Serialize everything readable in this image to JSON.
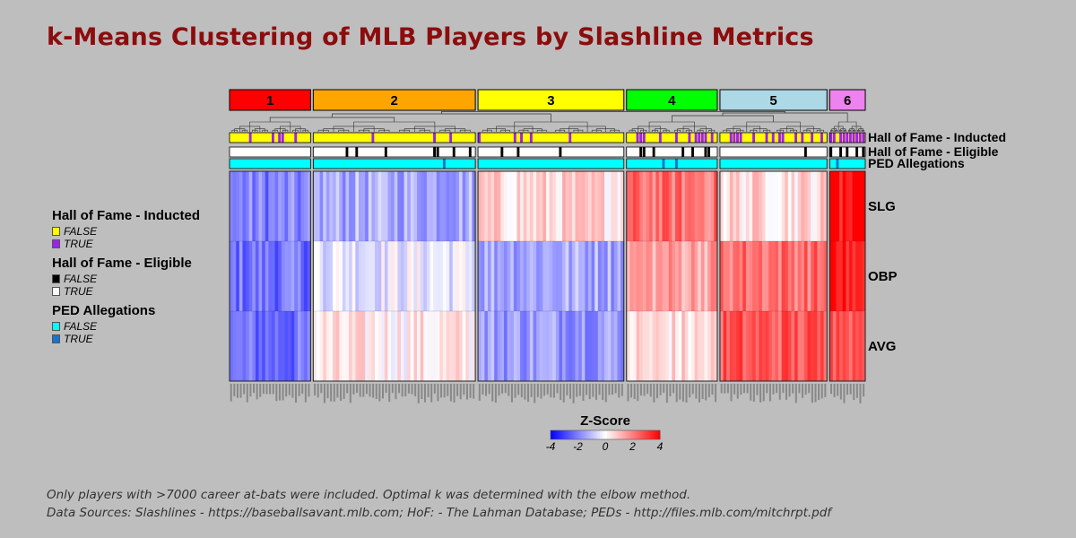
{
  "title": "k-Means Clustering of MLB Players by Slashline Metrics",
  "chart_data": {
    "type": "heatmap",
    "rows": [
      "SLG",
      "OBP",
      "AVG"
    ],
    "clusters": [
      {
        "label": "1",
        "color": "#ff0000",
        "n_players": 25,
        "mean_z": {
          "SLG": -2.0,
          "OBP": -2.2,
          "AVG": -2.3
        },
        "hof_inducted_share": 0.25,
        "hof_ineligible_share": 0.05,
        "ped_true_share": 0.0
      },
      {
        "label": "2",
        "color": "#ffa500",
        "n_players": 50,
        "mean_z": {
          "SLG": -1.3,
          "OBP": -0.3,
          "AVG": 0.3
        },
        "hof_inducted_share": 0.1,
        "hof_ineligible_share": 0.18,
        "ped_true_share": 0.02
      },
      {
        "label": "3",
        "color": "#ffff00",
        "n_players": 45,
        "mean_z": {
          "SLG": 0.6,
          "OBP": -1.3,
          "AVG": -1.5
        },
        "hof_inducted_share": 0.15,
        "hof_ineligible_share": 0.12,
        "ped_true_share": 0.02
      },
      {
        "label": "4",
        "color": "#00ff00",
        "n_players": 28,
        "mean_z": {
          "SLG": 2.2,
          "OBP": 1.5,
          "AVG": 0.5
        },
        "hof_inducted_share": 0.45,
        "hof_ineligible_share": 0.15,
        "ped_true_share": 0.1
      },
      {
        "label": "5",
        "color": "#add8e6",
        "n_players": 33,
        "mean_z": {
          "SLG": 0.6,
          "OBP": 2.3,
          "AVG": 2.6
        },
        "hof_inducted_share": 0.35,
        "hof_ineligible_share": 0.08,
        "ped_true_share": 0.0
      },
      {
        "label": "6",
        "color": "#ee82ee",
        "n_players": 11,
        "mean_z": {
          "SLG": 3.7,
          "OBP": 3.6,
          "AVG": 2.8
        },
        "hof_inducted_share": 0.55,
        "hof_ineligible_share": 0.3,
        "ped_true_share": 0.1
      }
    ],
    "annotation_tracks": [
      {
        "name": "Hall of Fame - Inducted",
        "levels": [
          {
            "label": "FALSE",
            "color": "#ffff00"
          },
          {
            "label": "TRUE",
            "color": "#a020f0"
          }
        ]
      },
      {
        "name": "Hall of Fame - Eligible",
        "levels": [
          {
            "label": "FALSE",
            "color": "#000000"
          },
          {
            "label": "TRUE",
            "color": "#ffffff"
          }
        ]
      },
      {
        "name": "PED Allegations",
        "levels": [
          {
            "label": "FALSE",
            "color": "#00ffff"
          },
          {
            "label": "TRUE",
            "color": "#1874cd"
          }
        ]
      }
    ],
    "color_scale": {
      "title": "Z-Score",
      "min": -4,
      "max": 4,
      "ticks": [
        -4,
        -2,
        0,
        2,
        4
      ],
      "low": "#0000ff",
      "mid": "#ffffff",
      "high": "#ff0000"
    }
  },
  "footnote": {
    "line1": "Only players with >7000 career at-bats were included. Optimal k was determined with the elbow method.",
    "line2": "Data Sources: Slashlines - https://baseballsavant.mlb.com; HoF: - The Lahman Database; PEDs - http://files.mlb.com/mitchrpt.pdf"
  }
}
